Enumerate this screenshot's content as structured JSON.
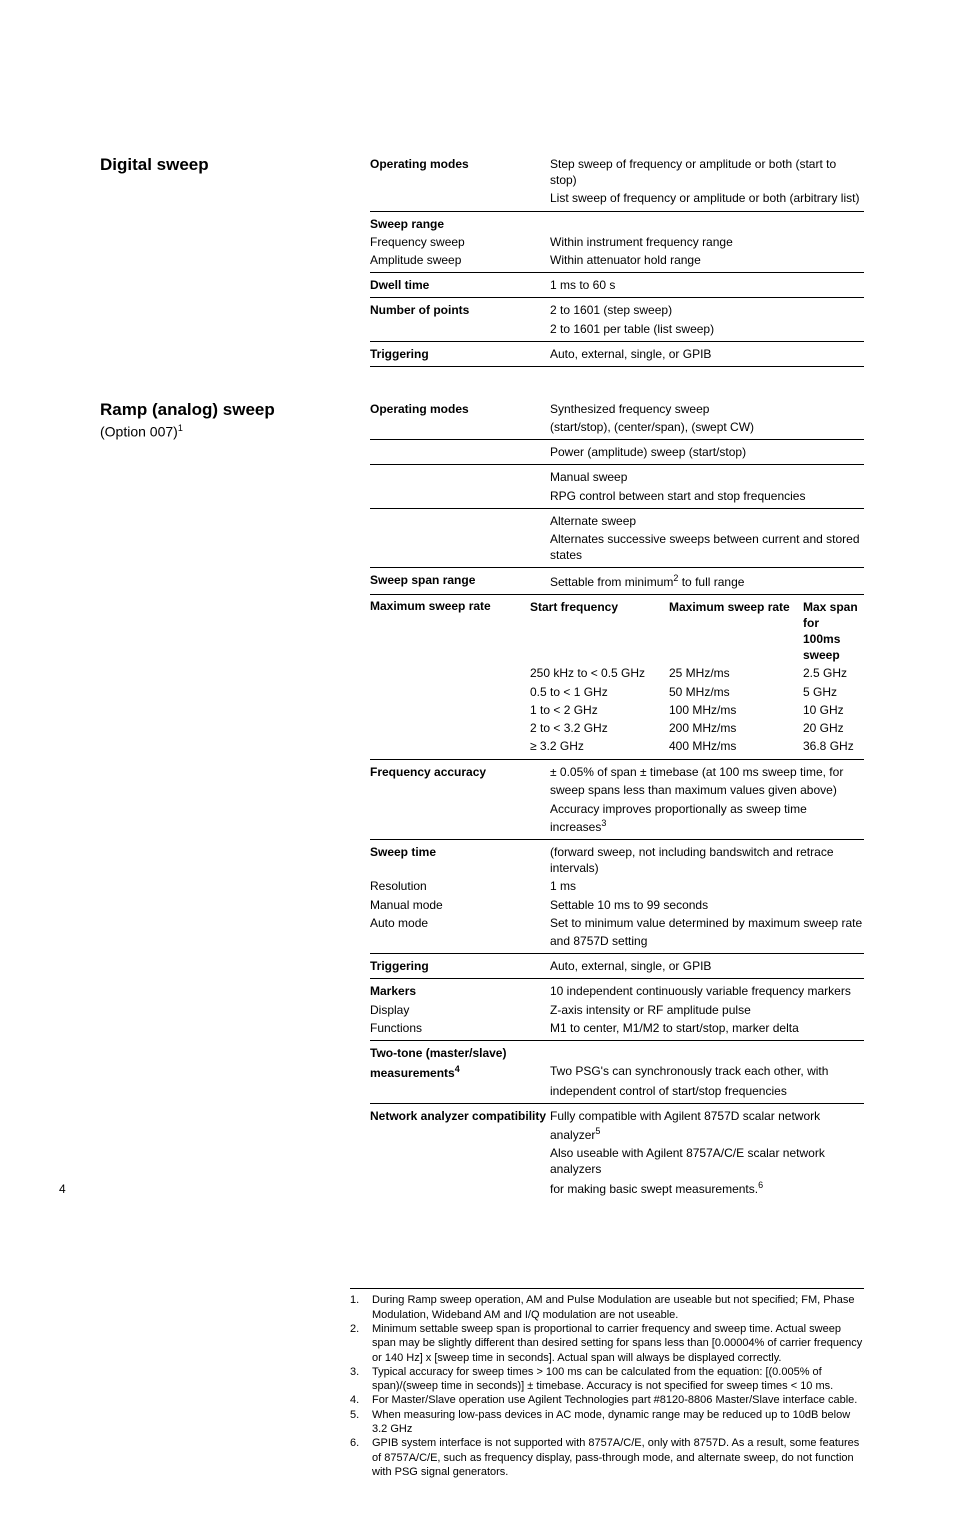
{
  "pageNumber": "4",
  "digital": {
    "title": "Digital sweep",
    "rows": [
      {
        "label": "Operating modes",
        "bold": true,
        "values": [
          "Step sweep of frequency or amplitude or both (start to stop)",
          "List sweep of frequency or amplitude or both (arbitrary list)"
        ],
        "hrAfter": true
      },
      {
        "label": "Sweep range",
        "bold": true,
        "values": []
      },
      {
        "label": "Frequency sweep",
        "bold": false,
        "values": [
          "Within instrument frequency range"
        ]
      },
      {
        "label": "Amplitude sweep",
        "bold": false,
        "values": [
          "Within attenuator hold range"
        ],
        "hrAfter": true
      },
      {
        "label": "Dwell time",
        "bold": true,
        "values": [
          "1 ms to 60 s"
        ],
        "hrAfter": true
      },
      {
        "label": "Number of points",
        "bold": true,
        "values": [
          "2 to 1601 (step sweep)",
          "2 to 1601 per table (list sweep)"
        ],
        "hrAfter": true
      },
      {
        "label": "Triggering",
        "bold": true,
        "values": [
          "Auto, external, single, or GPIB"
        ],
        "hrAfter": true
      }
    ]
  },
  "ramp": {
    "title": "Ramp (analog) sweep",
    "subtitle_pre": "(Option 007)",
    "subtitle_sup": "1",
    "rowsTop": [
      {
        "label": "Operating modes",
        "bold": true,
        "values": [
          "Synthesized frequency sweep",
          "(start/stop), (center/span), (swept CW)"
        ],
        "hrAfter": true
      },
      {
        "label": "",
        "bold": false,
        "values": [
          "Power (amplitude) sweep (start/stop)"
        ],
        "hrAfter": true
      },
      {
        "label": "",
        "bold": false,
        "values": [
          "Manual sweep",
          "RPG control between start and stop frequencies"
        ],
        "hrAfter": true
      },
      {
        "label": "",
        "bold": false,
        "values": [
          "Alternate sweep",
          "Alternates successive sweeps between current and stored states"
        ],
        "hrAfter": true
      }
    ],
    "sweepSpan": {
      "label": "Sweep span range",
      "value_pre": "Settable from minimum",
      "sup": "2",
      "value_post": " to full range"
    },
    "maxRateLabel": "Maximum sweep rate",
    "sweepHeader": {
      "c1": "Start frequency",
      "c2": "Maximum sweep rate",
      "c3": "Max span for",
      "c3b": "100ms sweep"
    },
    "sweepRows": [
      {
        "c1": "250 kHz to < 0.5 GHz",
        "c2": "25 MHz/ms",
        "c3": "2.5 GHz"
      },
      {
        "c1": "0.5 to < 1 GHz",
        "c2": "50 MHz/ms",
        "c3": "5 GHz"
      },
      {
        "c1": "1 to < 2 GHz",
        "c2": "100 MHz/ms",
        "c3": "10 GHz"
      },
      {
        "c1": "2 to < 3.2 GHz",
        "c2": "200 MHz/ms",
        "c3": "20 GHz"
      },
      {
        "c1": "≥ 3.2 GHz",
        "c2": "400 MHz/ms",
        "c3": "36.8 GHz"
      }
    ],
    "rowsBottom": [
      {
        "label": "Frequency accuracy",
        "bold": true,
        "values": [
          "± 0.05% of span ± timebase (at 100 ms sweep time, for",
          "sweep spans less than maximum values given above)"
        ],
        "hrBefore": true
      },
      {
        "label": "",
        "bold": false,
        "values_html": "Accuracy improves proportionally as sweep time increases<sup>3</sup>",
        "hrAfter": true
      },
      {
        "label": "Sweep time",
        "bold": true,
        "values": [
          "(forward sweep, not including bandswitch and retrace intervals)"
        ]
      },
      {
        "label": "Resolution",
        "bold": false,
        "values": [
          "1 ms"
        ]
      },
      {
        "label": "Manual mode",
        "bold": false,
        "values": [
          "Settable 10 ms to 99 seconds"
        ]
      },
      {
        "label": "Auto mode",
        "bold": false,
        "values": [
          "Set to minimum value determined by maximum sweep rate",
          "and 8757D setting"
        ],
        "hrAfter": true
      },
      {
        "label": "Triggering",
        "bold": true,
        "values": [
          "Auto, external, single, or GPIB"
        ],
        "hrAfter": true
      },
      {
        "label": "Markers",
        "bold": true,
        "values": [
          "10 independent continuously variable frequency markers"
        ]
      },
      {
        "label": "Display",
        "bold": false,
        "values": [
          "Z-axis intensity or RF amplitude pulse"
        ]
      },
      {
        "label": "Functions",
        "bold": false,
        "values": [
          "M1 to center, M1/M2 to start/stop, marker delta"
        ],
        "hrAfter": true
      },
      {
        "label": "Two-tone (master/slave)",
        "bold": true,
        "values": []
      },
      {
        "label_html": "measurements<sup>4</sup>",
        "bold": true,
        "values": [
          "Two PSG's can synchronously track each other, with",
          "independent control of start/stop frequencies"
        ],
        "hrAfter": true
      },
      {
        "label": "Network analyzer compatibility",
        "bold": true,
        "values_html": "Fully compatible with Agilent 8757D scalar network analyzer<sup>5</sup>"
      },
      {
        "label": "",
        "bold": false,
        "values": [
          "Also useable with Agilent 8757A/C/E scalar network analyzers"
        ]
      },
      {
        "label": "",
        "bold": false,
        "values_html": "for making basic swept measurements.<sup>6</sup>"
      }
    ]
  },
  "footnotes": [
    {
      "n": "1.",
      "t": "During Ramp sweep operation, AM and Pulse Modulation are useable but not specified; FM, Phase Modulation, Wideband AM and I/Q modulation are not useable."
    },
    {
      "n": "2.",
      "t": "Minimum settable sweep span is proportional to carrier frequency and sweep time. Actual sweep span may be slightly different than desired setting for spans less than [0.00004% of carrier frequency or 140 Hz] x [sweep time in seconds]. Actual span will always be displayed correctly."
    },
    {
      "n": "3.",
      "t": "Typical accuracy for sweep times > 100 ms can be calculated from the equation:\n[(0.005% of span)/(sweep time in seconds)] ± timebase. Accuracy is not specified for sweep times < 10 ms."
    },
    {
      "n": "4.",
      "t": "For Master/Slave operation use Agilent Technologies part #8120-8806 Master/Slave interface cable."
    },
    {
      "n": "5.",
      "t": "When measuring low-pass devices in AC mode, dynamic range may be reduced up to 10dB below 3.2 GHz"
    },
    {
      "n": "6.",
      "t": "GPIB system interface is not supported with 8757A/C/E, only with 8757D. As a result, some features of 8757A/C/E, such as frequency display, pass-through mode, and alternate sweep, do not function with PSG signal generators."
    }
  ]
}
